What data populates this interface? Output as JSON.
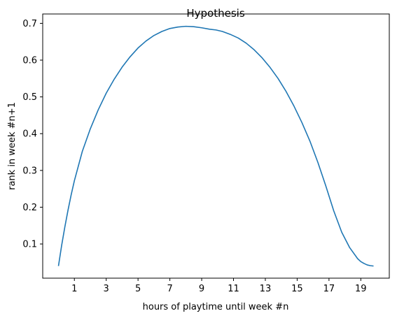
{
  "chart_data": {
    "type": "line",
    "title": "Hypothesis",
    "xlabel": "hours of playtime until week #n",
    "ylabel": "rank in week #n+1",
    "xlim": [
      -0.99,
      20.79
    ],
    "ylim": [
      0.007,
      0.7255
    ],
    "xticks": [
      1,
      3,
      5,
      7,
      9,
      11,
      13,
      15,
      17,
      19
    ],
    "xtick_labels": [
      "1",
      "3",
      "5",
      "7",
      "9",
      "11",
      "13",
      "15",
      "17",
      "19"
    ],
    "yticks": [
      0.1,
      0.2,
      0.3,
      0.4,
      0.5,
      0.6,
      0.7
    ],
    "ytick_labels": [
      "0.1",
      "0.2",
      "0.3",
      "0.4",
      "0.5",
      "0.6",
      "0.7"
    ],
    "grid": false,
    "series_color": "#1f77b4",
    "series": [
      {
        "x": [
          0.0,
          0.2,
          0.4,
          0.6,
          0.8,
          1.0,
          1.5,
          2.0,
          2.5,
          3.0,
          3.5,
          4.0,
          4.5,
          5.0,
          5.5,
          6.0,
          6.5,
          7.0,
          7.5,
          8.0,
          8.5,
          9.0,
          9.5,
          9.9,
          10.3,
          10.8,
          11.3,
          11.8,
          12.3,
          12.8,
          13.3,
          13.8,
          14.3,
          14.8,
          15.3,
          15.8,
          16.3,
          16.8,
          17.3,
          17.8,
          18.3,
          18.8,
          19.0,
          19.2,
          19.4,
          19.6,
          19.8
        ],
        "y": [
          0.04,
          0.096,
          0.146,
          0.192,
          0.234,
          0.272,
          0.352,
          0.413,
          0.465,
          0.51,
          0.548,
          0.581,
          0.609,
          0.633,
          0.652,
          0.667,
          0.678,
          0.686,
          0.69,
          0.692,
          0.691,
          0.688,
          0.684,
          0.682,
          0.678,
          0.67,
          0.66,
          0.646,
          0.628,
          0.606,
          0.58,
          0.55,
          0.515,
          0.475,
          0.43,
          0.38,
          0.322,
          0.258,
          0.19,
          0.132,
          0.09,
          0.06,
          0.052,
          0.047,
          0.043,
          0.041,
          0.04
        ]
      }
    ]
  }
}
